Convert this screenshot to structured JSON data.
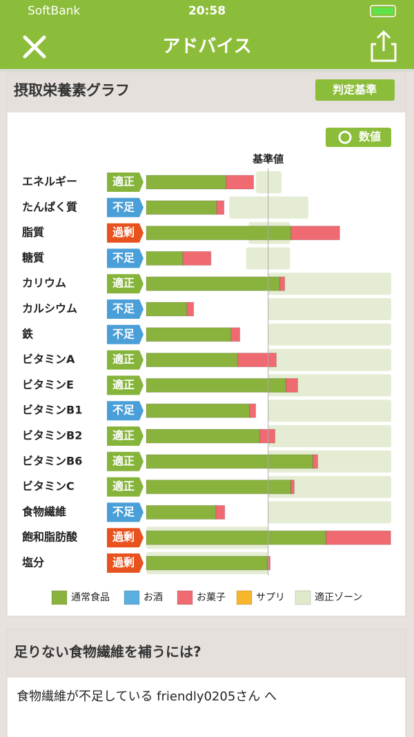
{
  "status_bar": {
    "carrier": "SoftBank",
    "time": "20:58"
  },
  "header": {
    "title": "アドバイス"
  },
  "chart_card": {
    "title": "摂取栄養素グラフ",
    "criteria_button": "判定基準",
    "toggle_button": "数値"
  },
  "chart_data": {
    "type": "stacked-bar-horizontal",
    "categories": [
      "エネルギー",
      "たんぱく質",
      "脂質",
      "糖質",
      "カリウム",
      "カルシウム",
      "鉄",
      "ビタミンA",
      "ビタミンE",
      "ビタミンB1",
      "ビタミンB2",
      "ビタミンB6",
      "ビタミンC",
      "食物繊維",
      "飽和脂肪酸",
      "塩分"
    ],
    "status": [
      "適正",
      "不足",
      "過剰",
      "不足",
      "適正",
      "不足",
      "不足",
      "適正",
      "適正",
      "不足",
      "適正",
      "適正",
      "適正",
      "不足",
      "過剰",
      "過剰"
    ],
    "status_colors": {
      "適正": "#86b43a",
      "不足": "#4a9fd8",
      "過剰": "#e8521e"
    },
    "series": [
      {
        "name": "通常食品",
        "color": "#8ab33e",
        "values": [
          65.5,
          57.6,
          118.6,
          29.9,
          109.6,
          33.3,
          69.5,
          75.1,
          114.7,
          84.7,
          93.2,
          136.7,
          118.6,
          57.1,
          147.5,
          99.4
        ]
      },
      {
        "name": "お酒",
        "color": "#5aaee0",
        "values": [
          0,
          0,
          0,
          0,
          0,
          0,
          0,
          0,
          0,
          0,
          0,
          0,
          0,
          0,
          0,
          0
        ]
      },
      {
        "name": "お菓子",
        "color": "#f06a72",
        "values": [
          22.6,
          6.2,
          40.1,
          23.2,
          4,
          5.6,
          7.3,
          31.6,
          9.6,
          5.1,
          12.4,
          4,
          2.8,
          7.3,
          53.1,
          2.3
        ]
      },
      {
        "name": "サプリ",
        "color": "#f8b62c",
        "values": [
          0,
          0,
          0,
          0,
          0,
          0,
          0,
          0,
          0,
          0,
          0,
          0,
          0,
          0,
          0,
          0
        ]
      }
    ],
    "zone": {
      "name": "適正ゾーン",
      "color": "#dfeacb",
      "ranges": [
        [
          90,
          111
        ],
        [
          68,
          133
        ],
        [
          84,
          118
        ],
        [
          82,
          118
        ],
        [
          100,
          201
        ],
        [
          100,
          201
        ],
        [
          100,
          201
        ],
        [
          100,
          201
        ],
        [
          100,
          201
        ],
        [
          100,
          201
        ],
        [
          100,
          201
        ],
        [
          100,
          201
        ],
        [
          100,
          201
        ],
        [
          100,
          201
        ],
        [
          0,
          100
        ],
        [
          0,
          100
        ]
      ]
    },
    "reference": {
      "label": "基準値",
      "value": 100
    },
    "xlim": [
      0,
      201
    ]
  },
  "advice_card": {
    "title": "足りない食物繊維を補うには?",
    "greeting": "食物繊維が不足している friendly0205さん へ"
  }
}
